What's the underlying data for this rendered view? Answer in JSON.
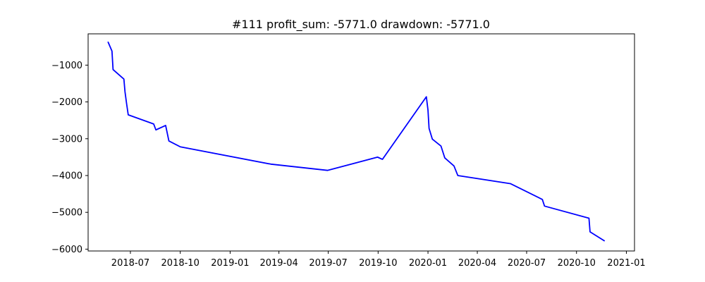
{
  "chart_data": {
    "type": "line",
    "title": "#111   profit_sum: -5771.0 drawdown: -5771.0",
    "xlabel": "",
    "ylabel": "",
    "x_axis_type": "date",
    "xlim": [
      "2018-04-14",
      "2021-01-16"
    ],
    "ylim": [
      -6050,
      -150
    ],
    "grid": false,
    "legend": "none",
    "x_ticks": [
      {
        "value": "2018-07-01",
        "label": "2018-07"
      },
      {
        "value": "2018-10-01",
        "label": "2018-10"
      },
      {
        "value": "2019-01-01",
        "label": "2019-01"
      },
      {
        "value": "2019-04-01",
        "label": "2019-04"
      },
      {
        "value": "2019-07-01",
        "label": "2019-07"
      },
      {
        "value": "2019-10-01",
        "label": "2019-10"
      },
      {
        "value": "2020-01-01",
        "label": "2020-01"
      },
      {
        "value": "2020-04-01",
        "label": "2020-04"
      },
      {
        "value": "2020-07-01",
        "label": "2020-07"
      },
      {
        "value": "2020-10-01",
        "label": "2020-10"
      },
      {
        "value": "2021-01-01",
        "label": "2021-01"
      }
    ],
    "y_ticks": [
      {
        "value": -1000,
        "label": "−1000"
      },
      {
        "value": -2000,
        "label": "−2000"
      },
      {
        "value": -3000,
        "label": "−3000"
      },
      {
        "value": -4000,
        "label": "−4000"
      },
      {
        "value": -5000,
        "label": "−5000"
      },
      {
        "value": -6000,
        "label": "−6000"
      }
    ],
    "series": [
      {
        "color": "#0000ff",
        "x": [
          "2018-05-21",
          "2018-05-28",
          "2018-05-30",
          "2018-06-19",
          "2018-06-21",
          "2018-06-24",
          "2018-06-27",
          "2018-08-13",
          "2018-08-17",
          "2018-09-04",
          "2018-09-10",
          "2018-10-01",
          "2019-03-17",
          "2019-06-30",
          "2019-09-30",
          "2019-10-09",
          "2019-12-29",
          "2020-01-01",
          "2020-01-03",
          "2020-01-09",
          "2020-01-25",
          "2020-02-01",
          "2020-02-18",
          "2020-02-25",
          "2020-06-01",
          "2020-07-30",
          "2020-08-03",
          "2020-10-24",
          "2020-10-26",
          "2020-11-21"
        ],
        "y": [
          -380,
          -620,
          -1120,
          -1380,
          -1720,
          -2050,
          -2350,
          -2600,
          -2760,
          -2640,
          -3060,
          -3220,
          -3690,
          -3860,
          -3500,
          -3560,
          -1860,
          -2220,
          -2720,
          -3010,
          -3200,
          -3520,
          -3740,
          -4000,
          -4220,
          -4650,
          -4830,
          -5160,
          -5530,
          -5771
        ]
      }
    ]
  }
}
